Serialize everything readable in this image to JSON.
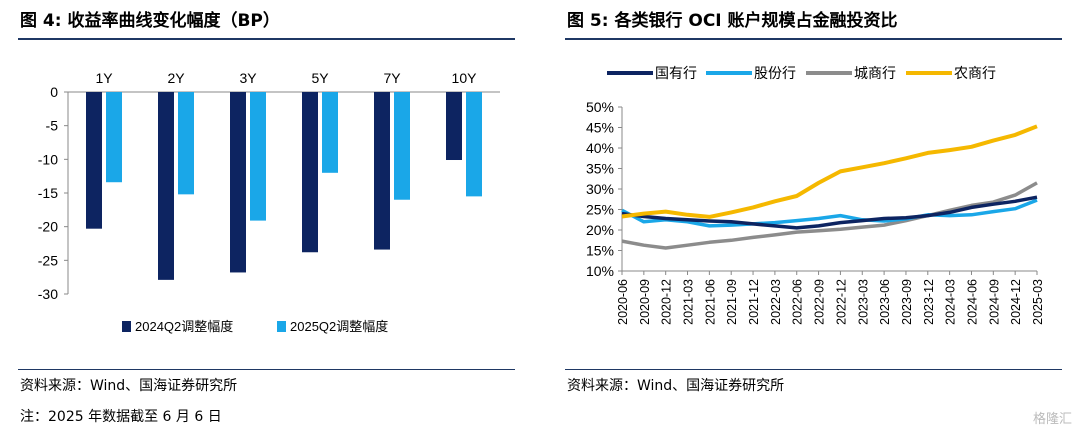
{
  "left": {
    "title": "图 4:  收益率曲线变化幅度（BP）",
    "source": "资料来源：Wind、国海证券研究所",
    "note": "注：2025 年数据截至 6 月 6 日"
  },
  "right": {
    "title": "图 5:  各类银行 OCI 账户规模占金融投资比",
    "source": "资料来源：Wind、国海证券研究所"
  },
  "watermark": "格隆汇",
  "colors": {
    "navy": "#0d2461",
    "skyblue": "#1aa7e8",
    "gray": "#8c8c8c",
    "gold": "#f5b800",
    "rule": "#1f3864"
  },
  "chart_data": [
    {
      "type": "bar",
      "categories": [
        "1Y",
        "2Y",
        "3Y",
        "5Y",
        "7Y",
        "10Y"
      ],
      "series": [
        {
          "name": "2024Q2调整幅度",
          "values": [
            -20.3,
            -27.9,
            -26.8,
            -23.8,
            -23.4,
            -10.1
          ]
        },
        {
          "name": "2025Q2调整幅度",
          "values": [
            -13.4,
            -15.2,
            -19.1,
            -12.0,
            -16.0,
            -15.5
          ]
        }
      ],
      "ylim": [
        -30,
        0
      ],
      "yticks": [
        "0",
        "-5",
        "-10",
        "-15",
        "-20",
        "-25",
        "-30"
      ],
      "legend": "bottom",
      "xaxis_position": "top"
    },
    {
      "type": "line",
      "x": [
        "2020-06",
        "2020-09",
        "2020-12",
        "2021-03",
        "2021-06",
        "2021-09",
        "2021-12",
        "2022-03",
        "2022-06",
        "2022-09",
        "2022-12",
        "2023-03",
        "2023-06",
        "2023-09",
        "2023-12",
        "2024-03",
        "2024-06",
        "2024-09",
        "2024-12",
        "2025-03"
      ],
      "series": [
        {
          "name": "国有行",
          "values": [
            24.0,
            23.3,
            22.8,
            22.5,
            22.2,
            22.0,
            21.5,
            21.0,
            20.5,
            21.0,
            21.8,
            22.3,
            22.8,
            23.0,
            23.5,
            24.3,
            25.5,
            26.3,
            27.0,
            28.0
          ]
        },
        {
          "name": "股份行",
          "values": [
            24.8,
            22.0,
            22.5,
            22.0,
            21.0,
            21.2,
            21.5,
            21.8,
            22.3,
            22.8,
            23.5,
            22.5,
            22.2,
            22.7,
            23.7,
            23.5,
            23.7,
            24.5,
            25.2,
            27.3
          ]
        },
        {
          "name": "城商行",
          "values": [
            17.3,
            16.3,
            15.6,
            16.3,
            17.0,
            17.5,
            18.2,
            18.8,
            19.5,
            19.8,
            20.2,
            20.7,
            21.2,
            22.3,
            23.5,
            24.8,
            26.0,
            26.8,
            28.5,
            31.5
          ]
        },
        {
          "name": "农商行",
          "values": [
            23.3,
            24.0,
            24.5,
            23.7,
            23.2,
            24.3,
            25.5,
            27.0,
            28.3,
            31.5,
            34.3,
            35.3,
            36.3,
            37.5,
            38.8,
            39.5,
            40.3,
            41.8,
            43.2,
            45.3
          ]
        }
      ],
      "ylim": [
        10,
        50
      ],
      "yticks": [
        "10%",
        "15%",
        "20%",
        "25%",
        "30%",
        "35%",
        "40%",
        "45%",
        "50%"
      ],
      "legend": "top"
    }
  ]
}
